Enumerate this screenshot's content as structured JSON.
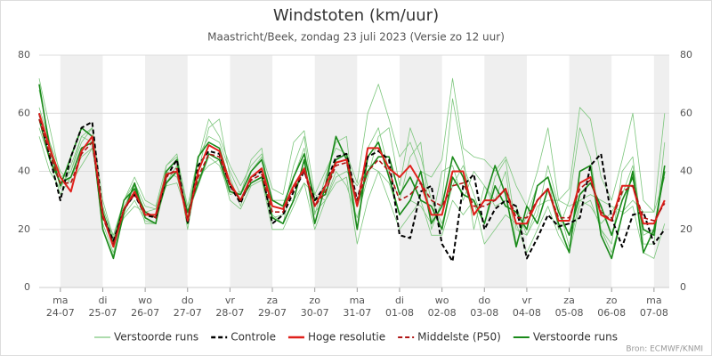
{
  "chart_data": {
    "type": "line",
    "title": "Windstoten (km/uur)",
    "subtitle": "Maastricht/Beek, zondag 23 juli 2023 (Versie zo 12 uur)",
    "source": "Bron: ECMWF/KNMI",
    "x": [
      0,
      0.25,
      0.5,
      0.75,
      1,
      1.25,
      1.5,
      1.75,
      2,
      2.25,
      2.5,
      2.75,
      3,
      3.25,
      3.5,
      3.75,
      4,
      4.25,
      4.5,
      4.75,
      5,
      5.25,
      5.5,
      5.75,
      6,
      6.25,
      6.5,
      6.75,
      7,
      7.25,
      7.5,
      7.75,
      8,
      8.25,
      8.5,
      8.75,
      9,
      9.25,
      9.5,
      9.75,
      10,
      10.25,
      10.5,
      10.75,
      11,
      11.25,
      11.5,
      11.75,
      12,
      12.25,
      12.5,
      12.75,
      13,
      13.25,
      13.5,
      13.75,
      14,
      14.25,
      14.5,
      14.75
    ],
    "xlim": [
      0,
      14.86
    ],
    "xticks": [
      {
        "value": 0.5,
        "label": "ma",
        "date": "24-07"
      },
      {
        "value": 1.5,
        "label": "di",
        "date": "25-07"
      },
      {
        "value": 2.5,
        "label": "wo",
        "date": "26-07"
      },
      {
        "value": 3.5,
        "label": "do",
        "date": "27-07"
      },
      {
        "value": 4.5,
        "label": "vr",
        "date": "28-07"
      },
      {
        "value": 5.5,
        "label": "za",
        "date": "29-07"
      },
      {
        "value": 6.5,
        "label": "zo",
        "date": "30-07"
      },
      {
        "value": 7.5,
        "label": "ma",
        "date": "31-07"
      },
      {
        "value": 8.5,
        "label": "di",
        "date": "01-08"
      },
      {
        "value": 9.5,
        "label": "wo",
        "date": "02-08"
      },
      {
        "value": 10.5,
        "label": "do",
        "date": "03-08"
      },
      {
        "value": 11.5,
        "label": "vr",
        "date": "04-08"
      },
      {
        "value": 12.5,
        "label": "za",
        "date": "05-08"
      },
      {
        "value": 13.5,
        "label": "zo",
        "date": "06-08"
      },
      {
        "value": 14.5,
        "label": "ma",
        "date": "07-08"
      }
    ],
    "ylim": [
      0,
      80
    ],
    "yticks": [
      0,
      20,
      40,
      60,
      80
    ],
    "y2lim": [
      0,
      80
    ],
    "y2ticks": [
      0,
      20,
      40,
      60,
      80
    ],
    "grid": true,
    "legend": "bottom",
    "series": [
      {
        "name": "Verstoorde runs",
        "color": "#7cc67c",
        "style": "solid",
        "width": 0.8,
        "members": [
          [
            68,
            50,
            35,
            40,
            50,
            55,
            22,
            12,
            28,
            35,
            22,
            22,
            36,
            42,
            20,
            40,
            55,
            58,
            38,
            28,
            40,
            45,
            25,
            22,
            38,
            48,
            25,
            38,
            50,
            52,
            20,
            48,
            55,
            40,
            30,
            45,
            50,
            20,
            30,
            65,
            45,
            20,
            35,
            30,
            40,
            15,
            25,
            35,
            38,
            20,
            30,
            55,
            45,
            20,
            15,
            40,
            45,
            15,
            15,
            50
          ],
          [
            55,
            44,
            32,
            38,
            45,
            48,
            27,
            18,
            30,
            36,
            28,
            27,
            40,
            38,
            25,
            35,
            45,
            42,
            32,
            33,
            35,
            37,
            30,
            30,
            30,
            36,
            32,
            30,
            38,
            40,
            35,
            42,
            40,
            36,
            25,
            30,
            28,
            22,
            40,
            42,
            30,
            40,
            35,
            28,
            30,
            28,
            18,
            28,
            30,
            30,
            28,
            30,
            32,
            30,
            28,
            26,
            30,
            26,
            26,
            38
          ],
          [
            52,
            40,
            34,
            42,
            52,
            50,
            20,
            11,
            25,
            30,
            23,
            22,
            42,
            45,
            28,
            45,
            52,
            50,
            40,
            32,
            44,
            48,
            24,
            25,
            42,
            52,
            26,
            30,
            40,
            35,
            24,
            38,
            52,
            55,
            35,
            55,
            45,
            30,
            22,
            35,
            42,
            32,
            22,
            38,
            44,
            20,
            18,
            25,
            42,
            28,
            14,
            30,
            28,
            22,
            26,
            32,
            42,
            18,
            20,
            42
          ],
          [
            62,
            50,
            40,
            36,
            42,
            48,
            28,
            16,
            24,
            28,
            26,
            27,
            35,
            36,
            25,
            38,
            42,
            44,
            30,
            27,
            35,
            37,
            20,
            20,
            28,
            36,
            20,
            30,
            36,
            38,
            15,
            30,
            40,
            30,
            20,
            25,
            30,
            18,
            18,
            30,
            25,
            30,
            15,
            20,
            25,
            22,
            12,
            20,
            28,
            18,
            12,
            28,
            30,
            20,
            12,
            25,
            28,
            12,
            10,
            22
          ],
          [
            72,
            55,
            38,
            40,
            52,
            55,
            30,
            17,
            30,
            38,
            30,
            28,
            42,
            46,
            26,
            44,
            58,
            52,
            42,
            35,
            42,
            46,
            34,
            32,
            50,
            54,
            32,
            40,
            48,
            46,
            36,
            60,
            70,
            58,
            45,
            50,
            40,
            38,
            44,
            72,
            48,
            45,
            44,
            40,
            45,
            35,
            28,
            40,
            55,
            30,
            34,
            62,
            58,
            38,
            30,
            44,
            60,
            30,
            26,
            60
          ]
        ]
      },
      {
        "name": "Controle",
        "color": "#000000",
        "style": "dashed",
        "width": 2,
        "values": [
          60,
          45,
          30,
          45,
          55,
          57,
          25,
          16,
          27,
          32,
          25,
          24,
          38,
          44,
          22,
          42,
          47,
          46,
          35,
          29,
          38,
          40,
          22,
          25,
          33,
          40,
          30,
          35,
          45,
          46,
          30,
          45,
          47,
          44,
          18,
          17,
          33,
          35,
          15,
          9,
          35,
          39,
          20,
          27,
          30,
          28,
          10,
          17,
          25,
          21,
          22,
          24,
          42,
          46,
          24,
          14,
          25,
          26,
          15,
          20
        ]
      },
      {
        "name": "Hoge resolutie",
        "color": "#e0201b",
        "style": "solid",
        "width": 2,
        "values": [
          60,
          48,
          38,
          33,
          47,
          52,
          25,
          14,
          27,
          33,
          25,
          25,
          39,
          40,
          23,
          40,
          49,
          47,
          36,
          30,
          38,
          41,
          28,
          27,
          35,
          41,
          28,
          35,
          43,
          44,
          28,
          48,
          48,
          41,
          38,
          42,
          36,
          25,
          25,
          40,
          40,
          25,
          30,
          30,
          34,
          22,
          22,
          30,
          34,
          23,
          23,
          36,
          38,
          25,
          23,
          35,
          35,
          22,
          22,
          30
        ]
      },
      {
        "name": "Middelste (P50)",
        "color": "#b01515",
        "style": "dashed",
        "width": 1.6,
        "values": [
          58,
          46,
          36,
          36,
          46,
          50,
          24,
          15,
          27,
          32,
          26,
          24,
          38,
          41,
          24,
          38,
          46,
          45,
          35,
          30,
          37,
          39,
          26,
          26,
          34,
          40,
          28,
          33,
          42,
          43,
          30,
          40,
          44,
          40,
          30,
          32,
          36,
          30,
          28,
          35,
          36,
          28,
          28,
          30,
          34,
          24,
          24,
          30,
          34,
          24,
          24,
          34,
          37,
          26,
          23,
          33,
          35,
          24,
          23,
          29
        ]
      },
      {
        "name": "Verstoorde runs",
        "color": "#1a8a1a",
        "style": "solid",
        "width": 1.6,
        "members": [
          [
            70,
            48,
            35,
            45,
            55,
            52,
            20,
            10,
            26,
            36,
            24,
            22,
            40,
            44,
            22,
            45,
            50,
            48,
            36,
            30,
            36,
            38,
            24,
            22,
            30,
            44,
            22,
            35,
            52,
            44,
            20,
            45,
            50,
            38,
            25,
            30,
            40,
            22,
            28,
            45,
            38,
            25,
            30,
            42,
            32,
            14,
            28,
            22,
            34,
            22,
            12,
            40,
            42,
            18,
            10,
            25,
            40,
            12,
            20,
            40
          ],
          [
            58,
            44,
            36,
            38,
            48,
            50,
            26,
            15,
            30,
            34,
            26,
            24,
            36,
            40,
            26,
            36,
            46,
            44,
            33,
            32,
            40,
            44,
            30,
            28,
            38,
            46,
            30,
            32,
            44,
            46,
            28,
            40,
            45,
            45,
            32,
            38,
            30,
            28,
            20,
            38,
            32,
            30,
            22,
            35,
            28,
            26,
            20,
            35,
            38,
            26,
            18,
            32,
            36,
            28,
            18,
            30,
            38,
            20,
            18,
            42
          ]
        ]
      }
    ]
  }
}
